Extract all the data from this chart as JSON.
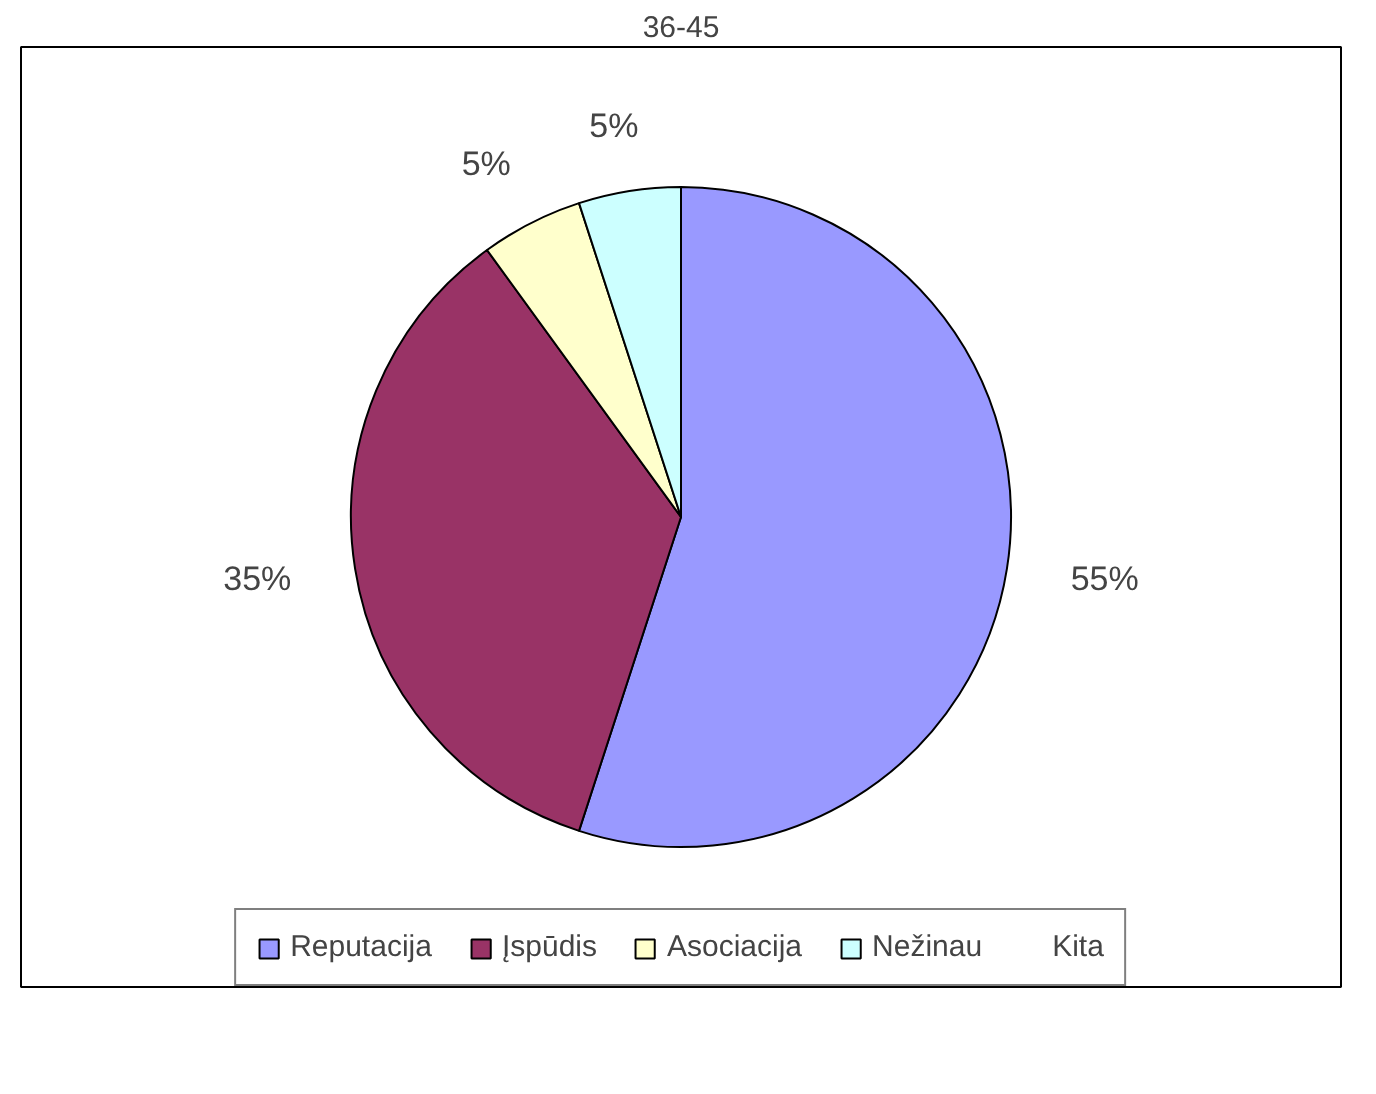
{
  "chart_data": {
    "type": "pie",
    "title": "36-45",
    "categories": [
      "Reputacija",
      "Įspūdis",
      "Asociacija",
      "Nežinau",
      "Kita"
    ],
    "values": [
      55,
      35,
      5,
      5,
      0
    ],
    "colors": [
      "#9999ff",
      "#993366",
      "#ffffcc",
      "#ccffff",
      "#660066"
    ],
    "value_labels": [
      "55%",
      "35%",
      "5%",
      "5%",
      null
    ],
    "legend": "bottom"
  }
}
